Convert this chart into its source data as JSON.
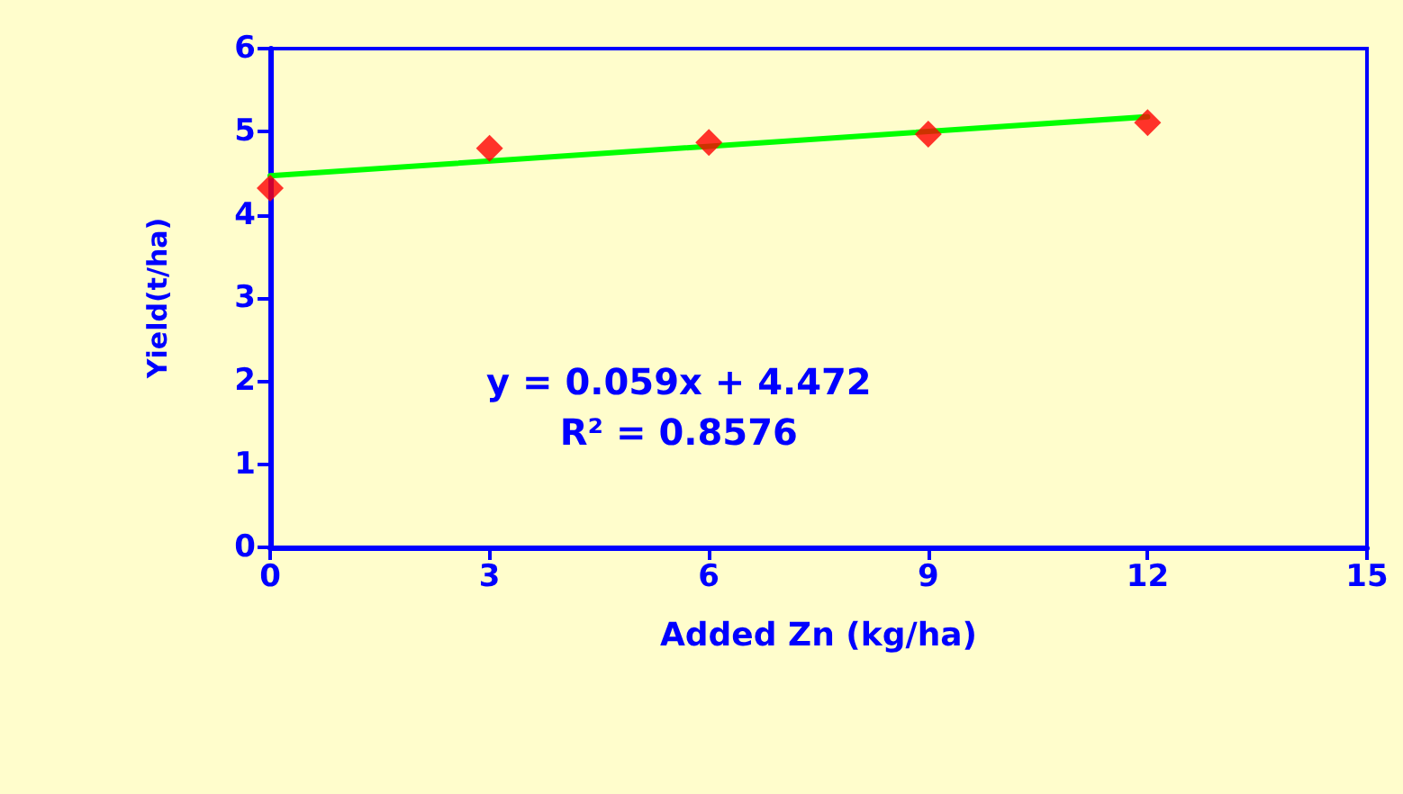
{
  "chart_data": {
    "type": "scatter",
    "xlabel": "Added Zn (kg/ha)",
    "ylabel": "Yield(t/ha)",
    "x": [
      0,
      3,
      6,
      9,
      12
    ],
    "series": [
      {
        "color": "#ff0000",
        "marker": "diamond",
        "values": [
          4.32,
          4.8,
          4.87,
          4.97,
          5.11
        ]
      },
      {
        "type": "line",
        "color": "#00ff00",
        "marker": "none",
        "x": [
          0,
          12
        ],
        "values": [
          4.47,
          5.18
        ]
      }
    ],
    "xlim": [
      0,
      15
    ],
    "xticks": [
      0,
      3,
      6,
      9,
      12,
      15
    ],
    "ylim": [
      0,
      6
    ],
    "yticks": [
      0,
      1,
      2,
      3,
      4,
      5,
      6
    ],
    "annotations": [
      "y = 0.059x + 4.472\nR² = 0.8576"
    ],
    "grid": false
  }
}
